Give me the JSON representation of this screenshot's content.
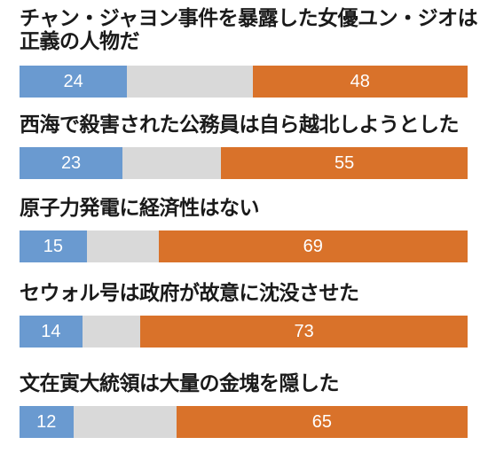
{
  "chart_data": {
    "type": "bar",
    "orientation": "horizontal-stacked",
    "colors": {
      "agree": "#6a9ad0",
      "neutral": "#d9d9d9",
      "disagree": "#d9722a"
    },
    "items": [
      {
        "label": "チャン・ジャヨン事件を暴露した女優ユン・ジオは正義の人物だ",
        "agree": 24,
        "neutral": 28,
        "disagree": 48
      },
      {
        "label": "西海で殺害された公務員は自ら越北しようとした",
        "agree": 23,
        "neutral": 22,
        "disagree": 55
      },
      {
        "label": "原子力発電に経済性はない",
        "agree": 15,
        "neutral": 16,
        "disagree": 69
      },
      {
        "label": "セウォル号は政府が故意に沈没させた",
        "agree": 14,
        "neutral": 13,
        "disagree": 73
      },
      {
        "label": "文在寅大統領は大量の金塊を隠した",
        "agree": 12,
        "neutral": 23,
        "disagree": 65
      }
    ]
  }
}
